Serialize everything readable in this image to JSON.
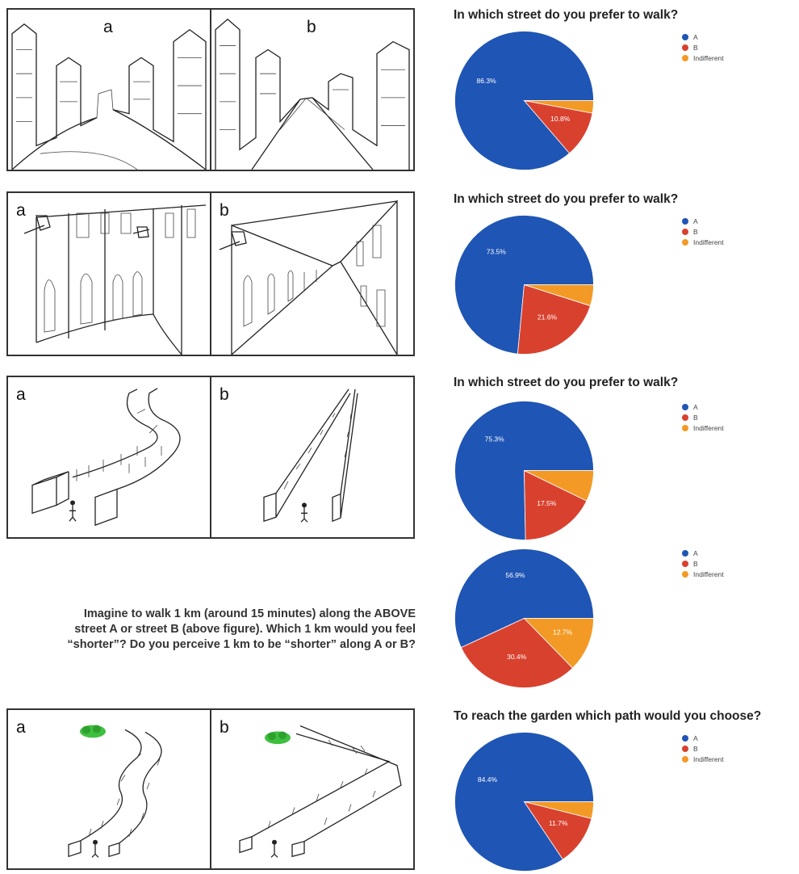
{
  "panels": [
    {
      "a": "a",
      "b": "b"
    },
    {
      "a": "a",
      "b": "b"
    },
    {
      "a": "a",
      "b": "b"
    },
    {
      "a": "a",
      "b": "b"
    }
  ],
  "question": {
    "line1": "Imagine to walk 1 km (around 15 minutes) along the ABOVE",
    "line2": "street A or street B (above figure). Which 1 km would you feel",
    "line3": "“shorter”? Do you perceive 1 km to be “shorter” along A or B?"
  },
  "colors": {
    "A": "#1f55b4",
    "B": "#d9412f",
    "Indifferent": "#f39a26"
  },
  "chart_data": [
    {
      "type": "pie",
      "title": "In which street do you prefer to walk?",
      "categories": [
        "A",
        "B",
        "Indifferent"
      ],
      "values": [
        86.3,
        10.8,
        2.9
      ],
      "labels": [
        "86.3%",
        "10.8%",
        ""
      ],
      "legend": "right"
    },
    {
      "type": "pie",
      "title": "In which street do you prefer to walk?",
      "categories": [
        "A",
        "B",
        "Indifferent"
      ],
      "values": [
        73.5,
        21.6,
        4.9
      ],
      "labels": [
        "73.5%",
        "21.6%",
        ""
      ],
      "legend": "right"
    },
    {
      "type": "pie",
      "title": "In which street do you prefer to walk?",
      "categories": [
        "A",
        "B",
        "Indifferent"
      ],
      "values": [
        75.3,
        17.5,
        7.2
      ],
      "labels": [
        "75.3%",
        "17.5%",
        ""
      ],
      "legend": "right"
    },
    {
      "type": "pie",
      "title": "",
      "categories": [
        "A",
        "B",
        "Indifferent"
      ],
      "values": [
        56.9,
        30.4,
        12.7
      ],
      "labels": [
        "56.9%",
        "30.4%",
        "12.7%"
      ],
      "legend": "right"
    },
    {
      "type": "pie",
      "title": "To reach the garden which path would you choose?",
      "categories": [
        "A",
        "B",
        "Indifferent"
      ],
      "values": [
        84.4,
        11.7,
        3.9
      ],
      "labels": [
        "84.4%",
        "11.7%",
        ""
      ],
      "legend": "right"
    }
  ]
}
